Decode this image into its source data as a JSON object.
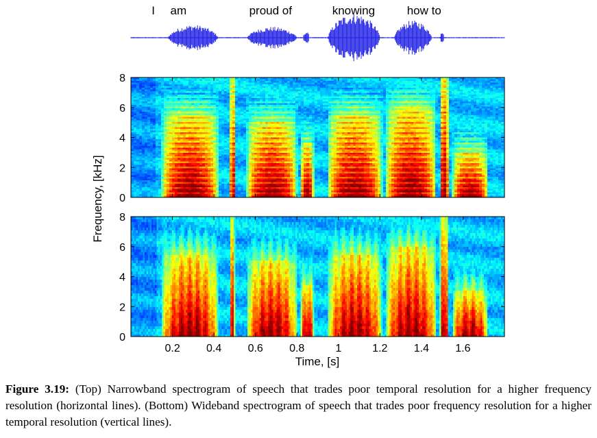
{
  "chart_data": [
    {
      "type": "line",
      "panel": "waveform",
      "title": "",
      "words": [
        {
          "text": "I",
          "time": 0.1
        },
        {
          "text": "am",
          "time": 0.19
        },
        {
          "text": "proud of",
          "time": 0.57
        },
        {
          "text": "knowing",
          "time": 0.97
        },
        {
          "text": "how to",
          "time": 1.33
        }
      ],
      "segments": [
        {
          "start": 0.18,
          "end": 0.42,
          "amp": 0.45
        },
        {
          "start": 0.56,
          "end": 0.8,
          "amp": 0.38
        },
        {
          "start": 0.83,
          "end": 0.86,
          "amp": 0.22
        },
        {
          "start": 0.95,
          "end": 1.2,
          "amp": 0.85
        },
        {
          "start": 1.27,
          "end": 1.45,
          "amp": 0.6
        },
        {
          "start": 1.49,
          "end": 1.51,
          "amp": 0.25
        }
      ],
      "xlim": [
        0,
        1.8
      ]
    },
    {
      "type": "heatmap",
      "panel": "narrowband",
      "title": "",
      "xlim": [
        0,
        1.8
      ],
      "ylim": [
        0,
        8
      ],
      "yticks": [
        0,
        2,
        4,
        6,
        8
      ],
      "colormap": "jet",
      "resolution": "frequency",
      "segments": [
        {
          "start": 0.15,
          "end": 0.42,
          "top": 5.5
        },
        {
          "start": 0.48,
          "end": 0.5,
          "top": 8
        },
        {
          "start": 0.56,
          "end": 0.8,
          "top": 5
        },
        {
          "start": 0.82,
          "end": 0.88,
          "top": 3.5
        },
        {
          "start": 0.95,
          "end": 1.21,
          "top": 5.5
        },
        {
          "start": 1.23,
          "end": 1.47,
          "top": 6
        },
        {
          "start": 1.49,
          "end": 1.53,
          "top": 8
        },
        {
          "start": 1.55,
          "end": 1.72,
          "top": 3
        }
      ]
    },
    {
      "type": "heatmap",
      "panel": "wideband",
      "title": "",
      "xlabel": "Time, [s]",
      "ylabel": "Frequency, [kHz]",
      "xlim": [
        0,
        1.8
      ],
      "ylim": [
        0,
        8
      ],
      "xticks": [
        0.2,
        0.4,
        0.6,
        0.8,
        1,
        1.2,
        1.4,
        1.6
      ],
      "yticks": [
        0,
        2,
        4,
        6,
        8
      ],
      "colormap": "jet",
      "resolution": "temporal",
      "segments": [
        {
          "start": 0.15,
          "end": 0.42,
          "top": 5.5
        },
        {
          "start": 0.48,
          "end": 0.5,
          "top": 8
        },
        {
          "start": 0.56,
          "end": 0.8,
          "top": 5
        },
        {
          "start": 0.82,
          "end": 0.88,
          "top": 3.5
        },
        {
          "start": 0.95,
          "end": 1.21,
          "top": 5.5
        },
        {
          "start": 1.23,
          "end": 1.47,
          "top": 6
        },
        {
          "start": 1.49,
          "end": 1.53,
          "top": 8
        },
        {
          "start": 1.55,
          "end": 1.72,
          "top": 3
        }
      ]
    }
  ],
  "caption": {
    "label": "Figure 3.19:",
    "text": "(Top) Narrowband spectrogram of speech that trades poor temporal resolution for a higher frequency resolution (horizontal lines). (Bottom) Wideband spectrogram of speech that trades poor frequency resolution for a higher temporal resolution (vertical lines)."
  },
  "colors": {
    "waveform": "#1f1fe6",
    "background": "#ffffff"
  }
}
